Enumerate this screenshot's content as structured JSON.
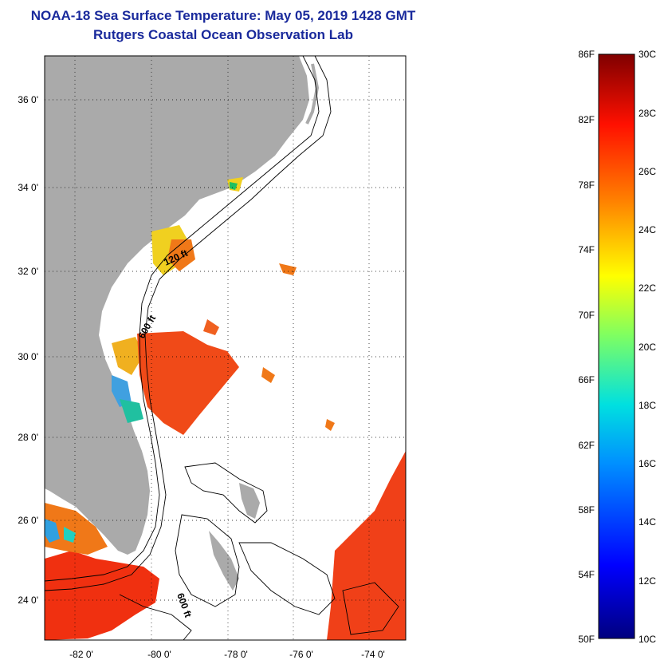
{
  "title": "NOAA-18 Sea Surface Temperature:  May 05, 2019 1428 GMT",
  "subtitle": "Rutgers Coastal Ocean Observation Lab",
  "lat_labels": [
    "36 0'",
    "34 0'",
    "32 0'",
    "30 0'",
    "28 0'",
    "26 0'",
    "24 0'"
  ],
  "lon_labels": [
    "-82 0'",
    "-80 0'",
    "-78 0'",
    "-76 0'",
    "-74 0'"
  ],
  "contour_labels": {
    "c120": "120 ft",
    "c600a": "600 ft",
    "c600b": "600 ft"
  },
  "colorbar": {
    "f_labels": [
      "86F",
      "82F",
      "78F",
      "74F",
      "70F",
      "66F",
      "62F",
      "58F",
      "54F",
      "50F"
    ],
    "c_labels": [
      "30C",
      "28C",
      "26C",
      "24C",
      "22C",
      "20C",
      "18C",
      "16C",
      "14C",
      "12C",
      "10C"
    ],
    "stops": [
      "#00007f",
      "#0000ff",
      "#0080ff",
      "#00ffff",
      "#80ff80",
      "#ffff00",
      "#ff8000",
      "#ff0000",
      "#7f0000"
    ]
  },
  "colors": {
    "land": "#aaaaaa",
    "ocean": "#ffffff",
    "warm": "#f03a10",
    "orange": "#f07818",
    "yellow": "#f0d020"
  }
}
